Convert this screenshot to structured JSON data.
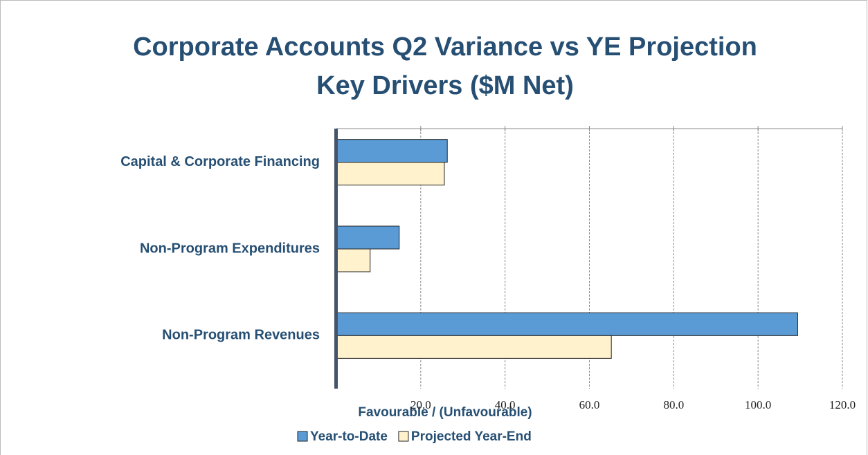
{
  "chart_data": {
    "type": "bar",
    "orientation": "horizontal",
    "title": [
      "Corporate Accounts Q2 Variance vs YE Projection",
      "Key Drivers ($M Net)"
    ],
    "categories": [
      "Capital & Corporate Financing",
      "Non-Program Expenditures",
      "Non-Program Revenues"
    ],
    "series": [
      {
        "name": "Year-to-Date",
        "color": "#5b9bd5",
        "values": [
          26.3,
          14.9,
          109.4
        ]
      },
      {
        "name": "Projected Year-End",
        "color": "#fff2cc",
        "values": [
          25.6,
          8.0,
          65.2
        ]
      }
    ],
    "xlabel": "Favourable / (Unfavourable)",
    "xlim": [
      0,
      120
    ],
    "xticks": [
      {
        "value": 20,
        "label": "20.0"
      },
      {
        "value": 40,
        "label": "40.0"
      },
      {
        "value": 60,
        "label": "60.0"
      },
      {
        "value": 80,
        "label": "80.0"
      },
      {
        "value": 100,
        "label": "100.0"
      },
      {
        "value": 120,
        "label": "120.0"
      }
    ],
    "grid": true,
    "legend": "bottom"
  }
}
